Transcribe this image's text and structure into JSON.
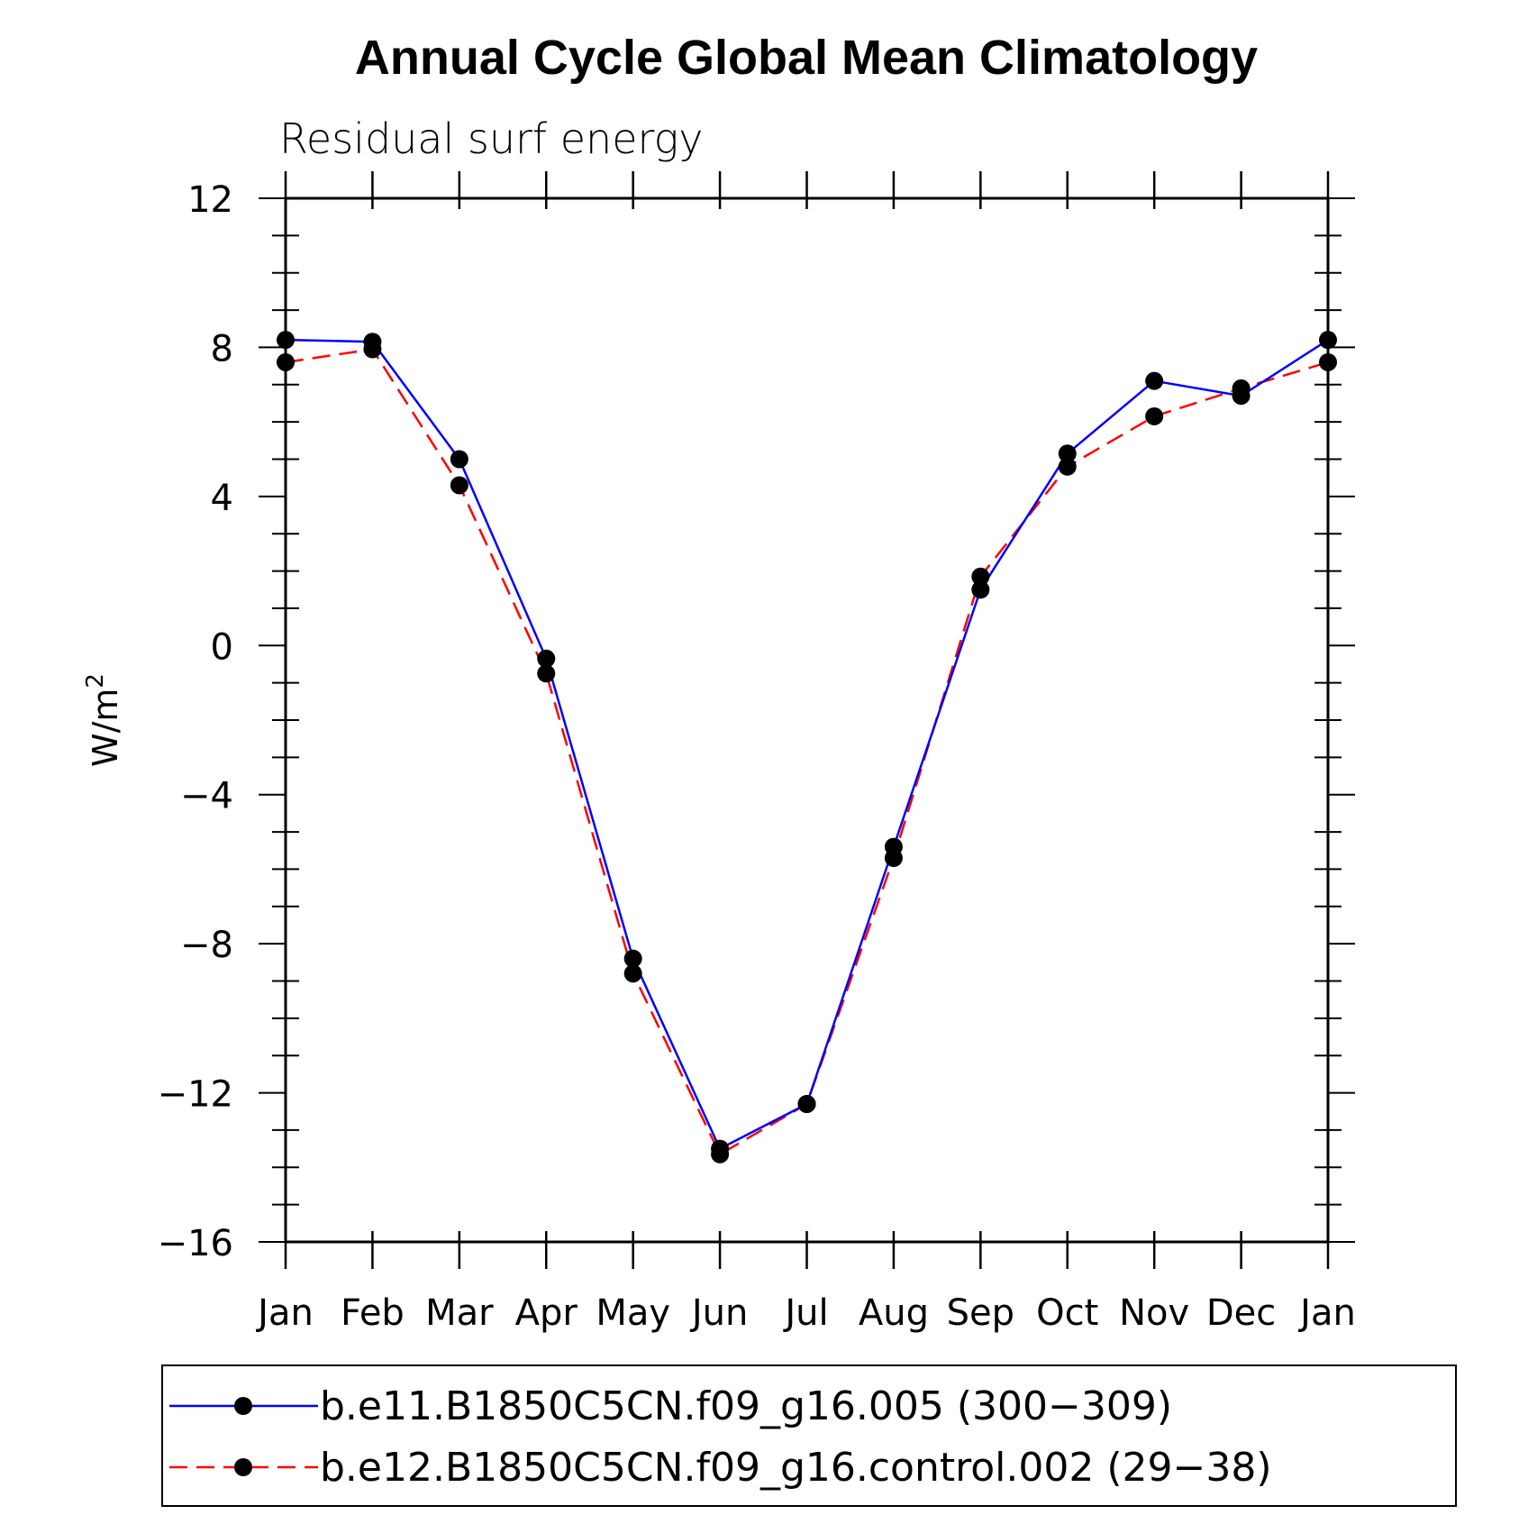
{
  "chart_data": {
    "type": "line",
    "title": "Annual Cycle Global Mean Climatology",
    "subtitle": "Residual surf energy",
    "ylabel": "W/m",
    "ylabel_superscript": "2",
    "xlabel": "",
    "categories": [
      "Jan",
      "Feb",
      "Mar",
      "Apr",
      "May",
      "Jun",
      "Jul",
      "Aug",
      "Sep",
      "Oct",
      "Nov",
      "Dec",
      "Jan"
    ],
    "ylim": [
      -16,
      12
    ],
    "yticks": [
      12,
      8,
      4,
      0,
      -4,
      -8,
      -12,
      -16
    ],
    "yticks_display": [
      "12",
      "8",
      "4",
      "0",
      "−4",
      "−8",
      "−12",
      "−16"
    ],
    "grid": false,
    "legend_position": "bottom",
    "series": [
      {
        "name": "b.e11.B1850C5CN.f09_g16.005 (300−309)",
        "color": "#0000ff",
        "dash": "solid",
        "marker": "filled-circle",
        "values": [
          8.2,
          8.15,
          5.0,
          -0.35,
          -8.4,
          -13.5,
          -12.3,
          -5.4,
          1.5,
          5.15,
          7.1,
          6.7,
          8.2
        ]
      },
      {
        "name": "b.e12.B1850C5CN.f09_g16.control.002 (29−38)",
        "color": "#ff0000",
        "dash": "dashed",
        "marker": "filled-circle",
        "values": [
          7.6,
          7.95,
          4.3,
          -0.75,
          -8.8,
          -13.65,
          -12.3,
          -5.7,
          1.85,
          4.8,
          6.15,
          6.9,
          7.6
        ]
      }
    ]
  }
}
